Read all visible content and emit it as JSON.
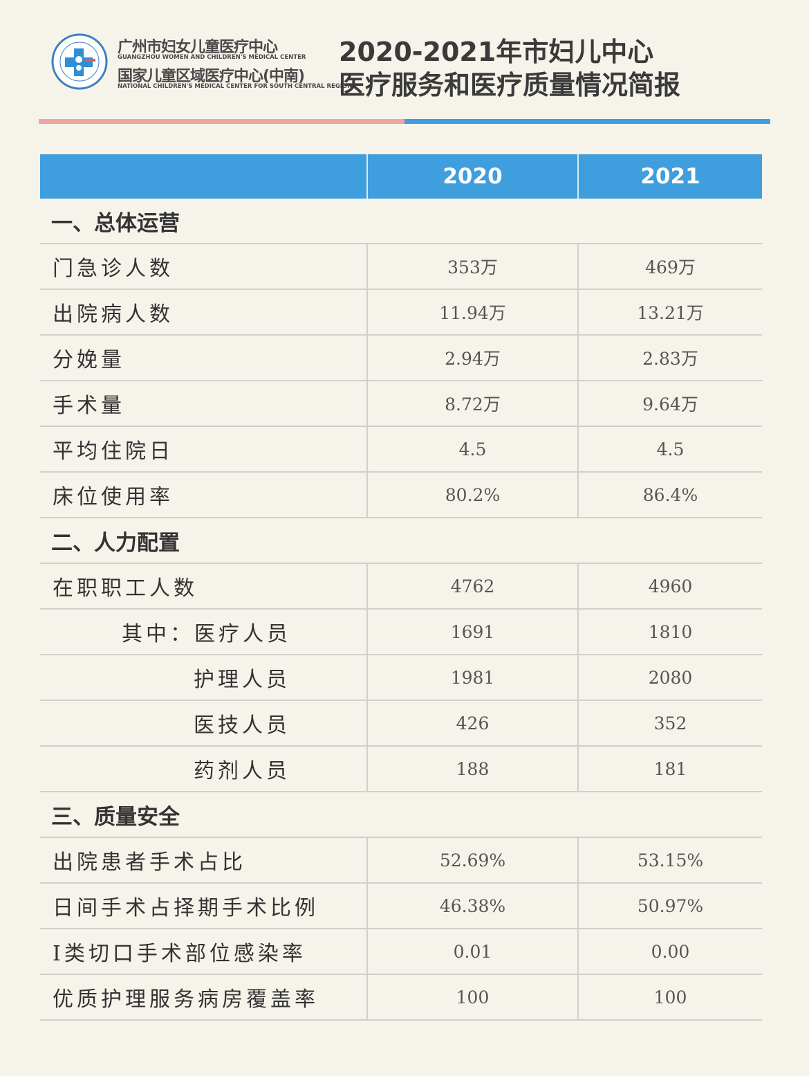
{
  "header": {
    "org_cn": "广州市妇女儿童医疗中心",
    "org_en": "GUANGZHOU WOMEN AND CHILDREN'S MEDICAL CENTER",
    "org2_cn": "国家儿童区域医疗中心(中南)",
    "org2_en": "NATIONAL CHILDREN'S MEDICAL CENTER FOR SOUTH CENTRAL REGION",
    "title_line1": "2020-2021年市妇儿中心",
    "title_line2": "医疗服务和医疗质量情况简报"
  },
  "colors": {
    "accent_blue": "#3f9edd",
    "accent_pink": "#eea4a0"
  },
  "table": {
    "columns": [
      "",
      "2020",
      "2021"
    ],
    "rows": [
      {
        "type": "section",
        "label": "一、总体运营"
      },
      {
        "label": "门急诊人数",
        "v2020": "353万",
        "v2021": "469万"
      },
      {
        "label": "出院病人数",
        "v2020": "11.94万",
        "v2021": "13.21万"
      },
      {
        "label": "分娩量",
        "v2020": "2.94万",
        "v2021": "2.83万"
      },
      {
        "label": "手术量",
        "v2020": "8.72万",
        "v2021": "9.64万"
      },
      {
        "label": "平均住院日",
        "v2020": "4.5",
        "v2021": "4.5"
      },
      {
        "label": "床位使用率",
        "v2020": "80.2%",
        "v2021": "86.4%"
      },
      {
        "type": "section",
        "label": "二、人力配置"
      },
      {
        "label": "在职职工人数",
        "v2020": "4762",
        "v2021": "4960"
      },
      {
        "label": "其中：医疗人员",
        "indent": 1,
        "v2020": "1691",
        "v2021": "1810"
      },
      {
        "label": "护理人员",
        "indent": 2,
        "v2020": "1981",
        "v2021": "2080"
      },
      {
        "label": "医技人员",
        "indent": 2,
        "v2020": "426",
        "v2021": "352"
      },
      {
        "label": "药剂人员",
        "indent": 2,
        "v2020": "188",
        "v2021": "181"
      },
      {
        "type": "section",
        "label": "三、质量安全"
      },
      {
        "label": "出院患者手术占比",
        "v2020": "52.69%",
        "v2021": "53.15%"
      },
      {
        "label": "日间手术占择期手术比例",
        "v2020": "46.38%",
        "v2021": "50.97%"
      },
      {
        "label": "I类切口手术部位感染率",
        "v2020": "0.01",
        "v2021": "0.00"
      },
      {
        "label": "优质护理服务病房覆盖率",
        "v2020": "100",
        "v2021": "100"
      }
    ]
  }
}
